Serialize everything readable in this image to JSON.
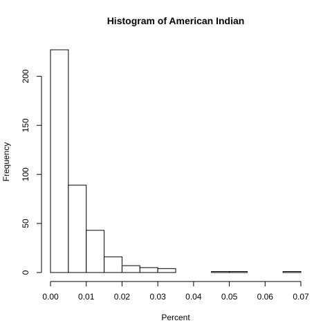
{
  "chart_data": {
    "type": "bar",
    "title": "Histogram of American Indian",
    "xlabel": "Percent",
    "ylabel": "Frequency",
    "bin_edges": [
      0.0,
      0.005,
      0.01,
      0.015,
      0.02,
      0.025,
      0.03,
      0.035,
      0.04,
      0.045,
      0.05,
      0.055,
      0.06,
      0.065,
      0.07
    ],
    "values": [
      227,
      89,
      43,
      16,
      7,
      5,
      4,
      0,
      0,
      1,
      1,
      0,
      0,
      1
    ],
    "xlim": [
      0,
      0.07
    ],
    "ylim": [
      0,
      227
    ],
    "x_ticks": [
      0.0,
      0.01,
      0.02,
      0.03,
      0.04,
      0.05,
      0.06,
      0.07
    ],
    "x_tick_labels": [
      "0.00",
      "0.01",
      "0.02",
      "0.03",
      "0.04",
      "0.05",
      "0.06",
      "0.07"
    ],
    "y_ticks": [
      0,
      50,
      100,
      150,
      200
    ],
    "y_tick_labels": [
      "0",
      "50",
      "100",
      "150",
      "200"
    ],
    "grid": false,
    "bar_fill": "#ffffff",
    "bar_stroke": "#000000"
  }
}
